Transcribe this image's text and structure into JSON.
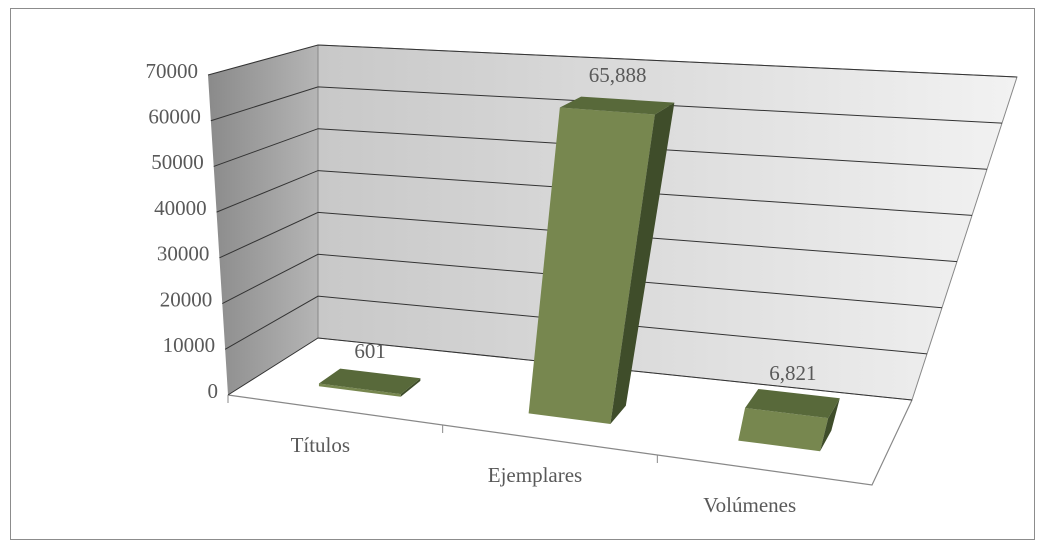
{
  "chart_data": {
    "type": "bar3d",
    "categories": [
      "Títulos",
      "Ejemplares",
      "Volúmenes"
    ],
    "values": [
      601,
      65888,
      6821
    ],
    "value_labels": [
      "601",
      "65,888",
      "6,821"
    ],
    "color": "#77874f",
    "ylim": [
      0,
      70000
    ],
    "yticks": [
      0,
      10000,
      20000,
      30000,
      40000,
      50000,
      60000,
      70000
    ],
    "grid": true
  }
}
